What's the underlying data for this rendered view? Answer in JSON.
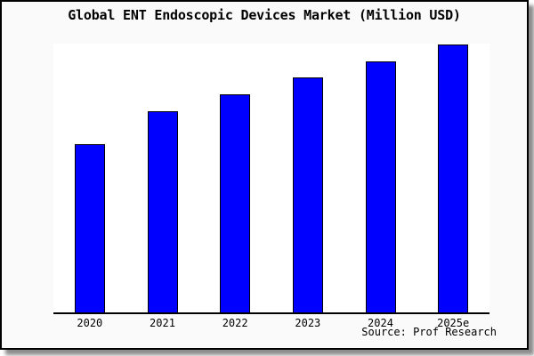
{
  "colors": {
    "figure_background": "#fafafa",
    "plot_background": "#ffffff",
    "frame_border": "#000000",
    "bar_fill": "#0000ff",
    "bar_edge": "#000000",
    "axis_line": "#000000",
    "text": "#000000"
  },
  "chart_data": {
    "type": "bar",
    "title": "Global ENT Endoscopic Devices Market (Million USD)",
    "categories": [
      "2020",
      "2021",
      "2022",
      "2023",
      "2024",
      "2025e"
    ],
    "values": [
      189,
      226,
      245,
      264,
      282,
      301
    ],
    "units": "relative height (no value axis or data labels shown in image)",
    "xlabel": "",
    "ylabel": "",
    "ylim": [
      0,
      302
    ],
    "grid": false,
    "legend": null,
    "source_note": "Source: Prof Research"
  }
}
